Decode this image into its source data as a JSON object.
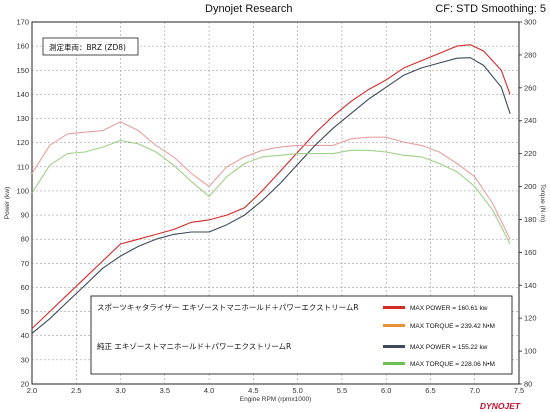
{
  "header": {
    "title": "Dynojet Research",
    "cf_label": "CF: STD Smoothing: 5"
  },
  "vehicle_label": "測定車両：BRZ (ZD8)",
  "logo_text": "DYNOJET",
  "chart_data": {
    "type": "line",
    "xlabel": "Engine RPM (rpmx1000)",
    "ylabel_left": "Power (kw)",
    "ylabel_right": "Torque (N·m)",
    "xlim": [
      2.0,
      7.5
    ],
    "ylim_left": [
      20,
      170
    ],
    "ylim_right": [
      80,
      300
    ],
    "x_ticks": [
      "2.0",
      "2.5",
      "3.0",
      "3.5",
      "4.0",
      "4.5",
      "5.0",
      "5.5",
      "6.0",
      "6.5",
      "7.0",
      "7.5"
    ],
    "y_ticks_left": [
      "20",
      "30",
      "40",
      "50",
      "60",
      "70",
      "80",
      "90",
      "100",
      "110",
      "120",
      "130",
      "140",
      "150",
      "160",
      "170"
    ],
    "y_ticks_right": [
      "80",
      "100",
      "120",
      "140",
      "160",
      "180",
      "200",
      "220",
      "240",
      "260",
      "280",
      "300"
    ],
    "grid": true,
    "series": [
      {
        "name": "スポーツキャタライザー エキゾーストマニホールド＋パワーエクストリームR",
        "metric": "power",
        "axis": "left",
        "color": "#d42a2a",
        "x": [
          2.0,
          2.2,
          2.4,
          2.6,
          2.8,
          3.0,
          3.2,
          3.4,
          3.6,
          3.8,
          4.0,
          4.2,
          4.4,
          4.6,
          4.8,
          5.0,
          5.2,
          5.4,
          5.6,
          5.8,
          6.0,
          6.2,
          6.4,
          6.6,
          6.8,
          6.95,
          7.1,
          7.3,
          7.4
        ],
        "y": [
          43,
          50,
          57,
          64,
          71,
          78,
          80,
          82,
          84,
          87,
          88,
          90,
          93,
          100,
          108,
          116,
          124,
          131,
          137,
          142,
          146,
          151,
          154,
          157,
          160,
          160.6,
          158,
          150,
          140
        ]
      },
      {
        "name": "スポーツキャタライザー エキゾーストマニホールド＋パワーエクストリームR",
        "metric": "torque",
        "axis": "right",
        "color": "#e8a0a0",
        "x": [
          2.0,
          2.2,
          2.4,
          2.6,
          2.8,
          3.0,
          3.2,
          3.4,
          3.6,
          3.8,
          4.0,
          4.2,
          4.4,
          4.6,
          4.8,
          5.0,
          5.2,
          5.4,
          5.6,
          5.8,
          6.0,
          6.2,
          6.4,
          6.6,
          6.8,
          7.0,
          7.2,
          7.4
        ],
        "y": [
          208,
          225,
          232,
          233,
          234,
          239.4,
          234,
          225,
          218,
          208,
          200,
          212,
          218,
          222,
          224,
          225,
          225,
          225,
          229,
          230,
          230,
          227,
          225,
          221,
          214,
          206,
          190,
          168
        ]
      },
      {
        "name": "純正 エキゾーストマニホールド＋パワーエクストリームR",
        "metric": "power",
        "axis": "left",
        "color": "#3c4a5c",
        "x": [
          2.0,
          2.2,
          2.4,
          2.6,
          2.8,
          3.0,
          3.2,
          3.4,
          3.6,
          3.8,
          4.0,
          4.2,
          4.4,
          4.6,
          4.8,
          5.0,
          5.2,
          5.4,
          5.6,
          5.8,
          6.0,
          6.2,
          6.4,
          6.6,
          6.8,
          6.95,
          7.1,
          7.3,
          7.4
        ],
        "y": [
          41,
          47,
          54,
          61,
          68,
          73,
          77,
          80,
          82,
          83,
          83,
          86,
          90,
          96,
          103,
          111,
          119,
          126,
          132,
          138,
          143,
          148,
          151,
          153,
          155,
          155.2,
          152,
          143,
          132
        ]
      },
      {
        "name": "純正 エキゾーストマニホールド＋パワーエクストリームR",
        "metric": "torque",
        "axis": "right",
        "color": "#9fd089",
        "x": [
          2.0,
          2.2,
          2.4,
          2.6,
          2.8,
          3.0,
          3.2,
          3.4,
          3.6,
          3.8,
          4.0,
          4.2,
          4.4,
          4.6,
          4.8,
          5.0,
          5.2,
          5.4,
          5.6,
          5.8,
          6.0,
          6.2,
          6.4,
          6.6,
          6.8,
          7.0,
          7.2,
          7.4
        ],
        "y": [
          196,
          213,
          220,
          221,
          224,
          228,
          226,
          221,
          213,
          203,
          194,
          206,
          214,
          218,
          219,
          220,
          220,
          220,
          222,
          222,
          221,
          219,
          218,
          214,
          209,
          200,
          186,
          165
        ]
      }
    ],
    "legend": {
      "placement": "bottom-center",
      "entries": [
        {
          "color": "#d42a2a",
          "label": "MAX POWER = 160.61 kw"
        },
        {
          "color": "#e8923c",
          "label": "MAX TORQUE = 239.42 N•M"
        },
        {
          "color": "#3c4a5c",
          "label": "MAX POWER = 155.22 kw"
        },
        {
          "color": "#6fbf52",
          "label": "MAX TORQUE = 228.06 N•M"
        }
      ]
    }
  }
}
